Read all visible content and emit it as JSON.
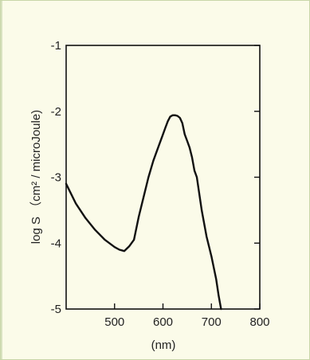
{
  "chart_data": {
    "type": "line",
    "title": "",
    "xlabel": "(nm)",
    "ylabel": "log S （cm² / microJoule)",
    "xlim": [
      400,
      800
    ],
    "ylim": [
      -5,
      -1
    ],
    "x_ticks": [
      500,
      600,
      700,
      800
    ],
    "y_ticks": [
      -1,
      -2,
      -3,
      -4,
      -5
    ],
    "x_tick_labels": [
      "500",
      "600",
      "700",
      "800"
    ],
    "y_tick_labels": [
      "-1",
      "-2",
      "-3",
      "-4",
      "-5"
    ],
    "grid": false,
    "series": [
      {
        "color": "#111111",
        "x": [
          400,
          420,
          440,
          460,
          480,
          500,
          510,
          520,
          530,
          540,
          550,
          560,
          570,
          580,
          590,
          600,
          605,
          610,
          615,
          620,
          625,
          630,
          635,
          640,
          645,
          650,
          655,
          660,
          665,
          670,
          680,
          690,
          700,
          710,
          715,
          720
        ],
        "y": [
          -3.1,
          -3.4,
          -3.62,
          -3.8,
          -3.95,
          -4.06,
          -4.1,
          -4.12,
          -4.05,
          -3.95,
          -3.6,
          -3.3,
          -3.0,
          -2.75,
          -2.55,
          -2.35,
          -2.25,
          -2.15,
          -2.08,
          -2.06,
          -2.06,
          -2.07,
          -2.1,
          -2.18,
          -2.35,
          -2.45,
          -2.55,
          -2.7,
          -2.9,
          -3.0,
          -3.5,
          -3.9,
          -4.2,
          -4.55,
          -4.8,
          -5.0
        ]
      }
    ]
  }
}
